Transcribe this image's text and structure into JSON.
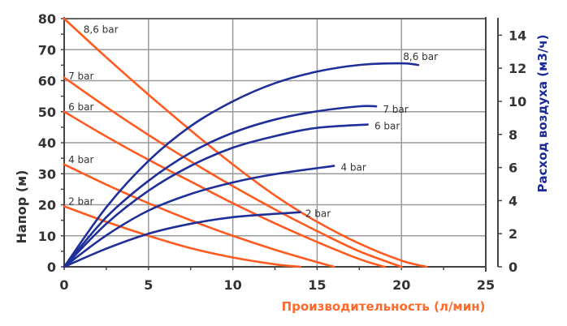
{
  "chart_data": {
    "type": "line",
    "title": "",
    "xlabel": "Производительность (л/мин)",
    "ylabel": "Напор (м)",
    "y2label": "Расход воздуха (м3/ч)",
    "xlim": [
      0,
      25
    ],
    "ylim": [
      0,
      80
    ],
    "y2lim": [
      0,
      15
    ],
    "x_ticks": [
      "0",
      "5",
      "10",
      "15",
      "20",
      "25"
    ],
    "y_ticks": [
      "0",
      "10",
      "20",
      "30",
      "40",
      "50",
      "60",
      "70",
      "80"
    ],
    "y2_ticks": [
      "0",
      "2",
      "4",
      "6",
      "8",
      "10",
      "12",
      "14"
    ],
    "grid": true,
    "colors": {
      "head": "#ff5a1f",
      "air": "#1f2f9a",
      "xlabel": "#ff6a2a",
      "y2label": "#1a2a9a",
      "grid": "#9a9a9a",
      "axis": "#444444"
    },
    "series": [
      {
        "name": "8,6 bar",
        "axis": "left",
        "kind": "head",
        "x": [
          0,
          2.5,
          5,
          7.5,
          10,
          12.5,
          15,
          17.5,
          20,
          21.5
        ],
        "y": [
          80,
          67.5,
          55.5,
          44,
          33,
          23,
          14.5,
          7.5,
          2,
          0
        ]
      },
      {
        "name": "7 bar",
        "axis": "left",
        "kind": "head",
        "x": [
          0,
          2.5,
          5,
          7.5,
          10,
          12.5,
          15,
          17.5,
          20
        ],
        "y": [
          61,
          51.5,
          42.5,
          34,
          26,
          18.5,
          11.5,
          5,
          0
        ]
      },
      {
        "name": "6 bar",
        "axis": "left",
        "kind": "head",
        "x": [
          0,
          2.5,
          5,
          7.5,
          10,
          12.5,
          15,
          17.5,
          19
        ],
        "y": [
          50,
          42,
          34.5,
          27.5,
          20.5,
          14,
          8,
          2.5,
          0
        ]
      },
      {
        "name": "4 bar",
        "axis": "left",
        "kind": "head",
        "x": [
          0,
          2.5,
          5,
          7.5,
          10,
          12.5,
          15,
          16
        ],
        "y": [
          33,
          26.5,
          20.5,
          15,
          10,
          5.5,
          1.5,
          0
        ]
      },
      {
        "name": "2 bar",
        "axis": "left",
        "kind": "head",
        "x": [
          0,
          2.5,
          5,
          7.5,
          10,
          12.5,
          14
        ],
        "y": [
          19.5,
          14.5,
          10,
          6,
          3,
          0.8,
          0
        ]
      },
      {
        "name": "8,6 bar",
        "axis": "right",
        "kind": "air",
        "x": [
          0,
          2.5,
          5,
          7.5,
          10,
          12.5,
          15,
          17.5,
          20,
          21
        ],
        "y": [
          0,
          3.6,
          6.4,
          8.5,
          10.0,
          11.1,
          11.8,
          12.2,
          12.3,
          12.2
        ]
      },
      {
        "name": "7 bar",
        "axis": "right",
        "kind": "air",
        "x": [
          0,
          2.5,
          5,
          7.5,
          10,
          12.5,
          15,
          17.5,
          18.5
        ],
        "y": [
          0,
          3.0,
          5.2,
          6.9,
          8.1,
          8.9,
          9.4,
          9.7,
          9.7
        ]
      },
      {
        "name": "6 bar",
        "axis": "right",
        "kind": "air",
        "x": [
          0,
          2.5,
          5,
          7.5,
          10,
          12.5,
          15,
          18
        ],
        "y": [
          0,
          2.6,
          4.6,
          6.1,
          7.2,
          7.9,
          8.4,
          8.6
        ]
      },
      {
        "name": "4 bar",
        "axis": "right",
        "kind": "air",
        "x": [
          0,
          2.5,
          5,
          7.5,
          10,
          12.5,
          16
        ],
        "y": [
          0,
          1.9,
          3.4,
          4.4,
          5.1,
          5.6,
          6.1
        ]
      },
      {
        "name": "2 bar",
        "axis": "right",
        "kind": "air",
        "x": [
          0,
          2.5,
          5,
          7.5,
          10,
          12.5,
          14
        ],
        "y": [
          0,
          1.1,
          2.0,
          2.6,
          3.0,
          3.2,
          3.3
        ]
      }
    ],
    "labels": [
      {
        "text": "8,6 bar",
        "kind": "head",
        "x": 1.0,
        "y": 76.5
      },
      {
        "text": "7 bar",
        "kind": "head",
        "x": 0.1,
        "y": 61.5
      },
      {
        "text": "6 bar",
        "kind": "head",
        "x": 0.1,
        "y": 51.5
      },
      {
        "text": "4 bar",
        "kind": "head",
        "x": 0.1,
        "y": 34.5
      },
      {
        "text": "2 bar",
        "kind": "head",
        "x": 0.1,
        "y": 21
      },
      {
        "text": "8,6 bar",
        "kind": "air",
        "x": 20.1,
        "y2": 12.7
      },
      {
        "text": "7 bar",
        "kind": "air",
        "x": 18.9,
        "y2": 9.5
      },
      {
        "text": "6 bar",
        "kind": "air",
        "x": 18.4,
        "y2": 8.5
      },
      {
        "text": "4 bar",
        "kind": "air",
        "x": 16.4,
        "y2": 6.0
      },
      {
        "text": "2 bar",
        "kind": "air",
        "x": 14.3,
        "y2": 3.2
      }
    ]
  }
}
